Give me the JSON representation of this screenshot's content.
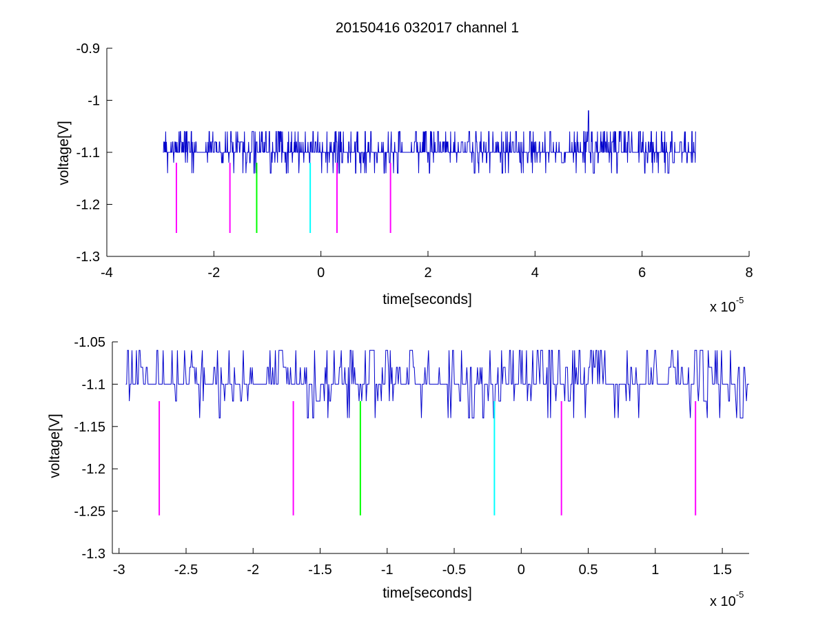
{
  "figure": {
    "title": "20150416 032017 channel 1"
  },
  "chart_data": [
    {
      "type": "line",
      "title": "20150416 032017 channel 1",
      "xlabel": "time[seconds]",
      "ylabel": "voltage[V]",
      "x_exponent_base": "x 10",
      "x_exponent": "-5",
      "xlim": [
        -4,
        8
      ],
      "ylim": [
        -1.3,
        -0.9
      ],
      "x_ticks": [
        -4,
        -2,
        0,
        2,
        4,
        6,
        8
      ],
      "x_tick_labels": [
        "-4",
        "-2",
        "0",
        "2",
        "4",
        "6",
        "8"
      ],
      "y_ticks": [
        -1.3,
        -1.2,
        -1.1,
        -1.0,
        -0.9
      ],
      "y_tick_labels": [
        "-1.3",
        "-1.2",
        "-1.1",
        "-1",
        "-0.9"
      ],
      "grid": false,
      "series": [
        {
          "color": "#0000cc",
          "x_range": [
            -2.95,
            7.0
          ],
          "baseline": -1.1,
          "levels": [
            -1.14,
            -1.12,
            -1.1,
            -1.08,
            -1.06,
            -1.02
          ],
          "peak": {
            "x": 5.0,
            "y": -1.02
          }
        }
      ],
      "markers": [
        {
          "x": -2.7,
          "y_top": -1.12,
          "y_bottom": -1.255,
          "color": "#ff00ff"
        },
        {
          "x": -1.7,
          "y_top": -1.12,
          "y_bottom": -1.255,
          "color": "#ff00ff"
        },
        {
          "x": -1.2,
          "y_top": -1.12,
          "y_bottom": -1.255,
          "color": "#00ff00"
        },
        {
          "x": -0.2,
          "y_top": -1.12,
          "y_bottom": -1.255,
          "color": "#00ffff"
        },
        {
          "x": 0.3,
          "y_top": -1.12,
          "y_bottom": -1.255,
          "color": "#ff00ff"
        },
        {
          "x": 1.3,
          "y_top": -1.12,
          "y_bottom": -1.255,
          "color": "#ff00ff"
        }
      ]
    },
    {
      "type": "line",
      "xlabel": "time[seconds]",
      "ylabel": "voltage[V]",
      "x_exponent_base": "x 10",
      "x_exponent": "-5",
      "xlim": [
        -3.05,
        1.7
      ],
      "ylim": [
        -1.3,
        -1.05
      ],
      "x_ticks": [
        -3,
        -2.5,
        -2,
        -1.5,
        -1,
        -0.5,
        0,
        0.5,
        1,
        1.5
      ],
      "x_tick_labels": [
        "-3",
        "-2.5",
        "-2",
        "-1.5",
        "-1",
        "-0.5",
        "0",
        "0.5",
        "1",
        "1.5"
      ],
      "y_ticks": [
        -1.3,
        -1.25,
        -1.2,
        -1.15,
        -1.1,
        -1.05
      ],
      "y_tick_labels": [
        "-1.3",
        "-1.25",
        "-1.2",
        "-1.15",
        "-1.1",
        "-1.05"
      ],
      "grid": false,
      "series": [
        {
          "color": "#0000cc",
          "x_range": [
            -2.95,
            1.7
          ],
          "baseline": -1.1,
          "levels": [
            -1.14,
            -1.12,
            -1.1,
            -1.08,
            -1.06
          ]
        }
      ],
      "markers": [
        {
          "x": -2.7,
          "y_top": -1.12,
          "y_bottom": -1.255,
          "color": "#ff00ff"
        },
        {
          "x": -1.7,
          "y_top": -1.12,
          "y_bottom": -1.255,
          "color": "#ff00ff"
        },
        {
          "x": -1.2,
          "y_top": -1.12,
          "y_bottom": -1.255,
          "color": "#00ff00"
        },
        {
          "x": -0.2,
          "y_top": -1.12,
          "y_bottom": -1.255,
          "color": "#00ffff"
        },
        {
          "x": 0.3,
          "y_top": -1.12,
          "y_bottom": -1.255,
          "color": "#ff00ff"
        },
        {
          "x": 1.3,
          "y_top": -1.12,
          "y_bottom": -1.255,
          "color": "#ff00ff"
        }
      ]
    }
  ]
}
